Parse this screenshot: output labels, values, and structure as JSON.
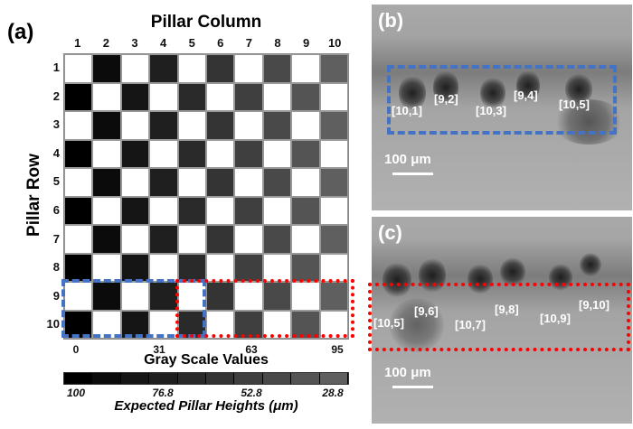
{
  "panel_a": {
    "letter": "(a)",
    "column_title": "Pillar Column",
    "row_title": "Pillar Row",
    "columns": [
      "1",
      "2",
      "3",
      "4",
      "5",
      "6",
      "7",
      "8",
      "9",
      "10"
    ],
    "rows": [
      "1",
      "2",
      "3",
      "4",
      "5",
      "6",
      "7",
      "8",
      "9",
      "10"
    ],
    "column_gray_colors": [
      "#000000",
      "#0b0b0b",
      "#151515",
      "#1f1f1f",
      "#2a2a2a",
      "#343434",
      "#3f3f3f",
      "#494949",
      "#545454",
      "#5f5f5f"
    ],
    "gray_scale_ticks": [
      "0",
      "31",
      "63",
      "95"
    ],
    "gray_scale_title": "Gray Scale Values",
    "height_ticks": [
      "100",
      "76.8",
      "52.8",
      "28.8"
    ],
    "height_title": "Expected Pillar Heights  (μm)",
    "blue_box_color": "#4472c4",
    "red_box_color": "#ff0000"
  },
  "panel_b": {
    "letter": "(b)",
    "labels": [
      "[10,1]",
      "[9,2]",
      "[10,3]",
      "[9,4]",
      "[10,5]"
    ],
    "scale": "100 μm"
  },
  "panel_c": {
    "letter": "(c)",
    "labels": [
      "[10,5]",
      "[9,6]",
      "[10,7]",
      "[9,8]",
      "[10,9]",
      "[9,10]"
    ],
    "scale": "100 μm"
  }
}
